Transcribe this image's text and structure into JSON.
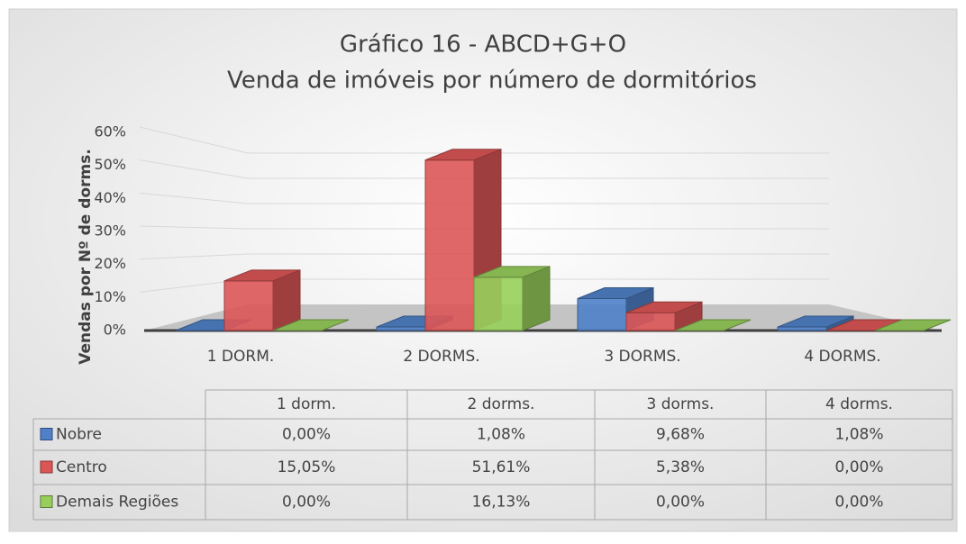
{
  "chart_data": {
    "type": "bar3d",
    "title": "Gráfico 16 - ABCD+G+O",
    "subtitle": "Venda de imóveis por número de dormitórios",
    "y_axis_label": "Vendas por Nº de dorms.",
    "categories": [
      "1 DORM.",
      "2 DORMS.",
      "3 DORMS.",
      "4 DORMS."
    ],
    "table_columns": [
      "1 dorm.",
      "2 dorms.",
      "3 dorms.",
      "4 dorms."
    ],
    "ylim": [
      0,
      60
    ],
    "yticks": [
      {
        "value": 0,
        "label": "0%"
      },
      {
        "value": 10,
        "label": "10%"
      },
      {
        "value": 20,
        "label": "20%"
      },
      {
        "value": 30,
        "label": "30%"
      },
      {
        "value": 40,
        "label": "40%"
      },
      {
        "value": 50,
        "label": "50%"
      },
      {
        "value": 60,
        "label": "60%"
      }
    ],
    "grid": true,
    "series": [
      {
        "name": "Nobre",
        "color": "#4f81c8",
        "values": [
          0,
          1.08,
          9.68,
          1.08
        ],
        "value_labels": [
          "0,00%",
          "1,08%",
          "9,68%",
          "1,08%"
        ]
      },
      {
        "name": "Centro",
        "color": "#dd5656",
        "values": [
          15.05,
          51.61,
          5.38,
          0
        ],
        "value_labels": [
          "15,05%",
          "51,61%",
          "5,38%",
          "0,00%"
        ]
      },
      {
        "name": "Demais Regiões",
        "color": "#98cf5c",
        "values": [
          0,
          16.13,
          0,
          0
        ],
        "value_labels": [
          "0,00%",
          "16,13%",
          "0,00%",
          "0,00%"
        ]
      }
    ]
  }
}
